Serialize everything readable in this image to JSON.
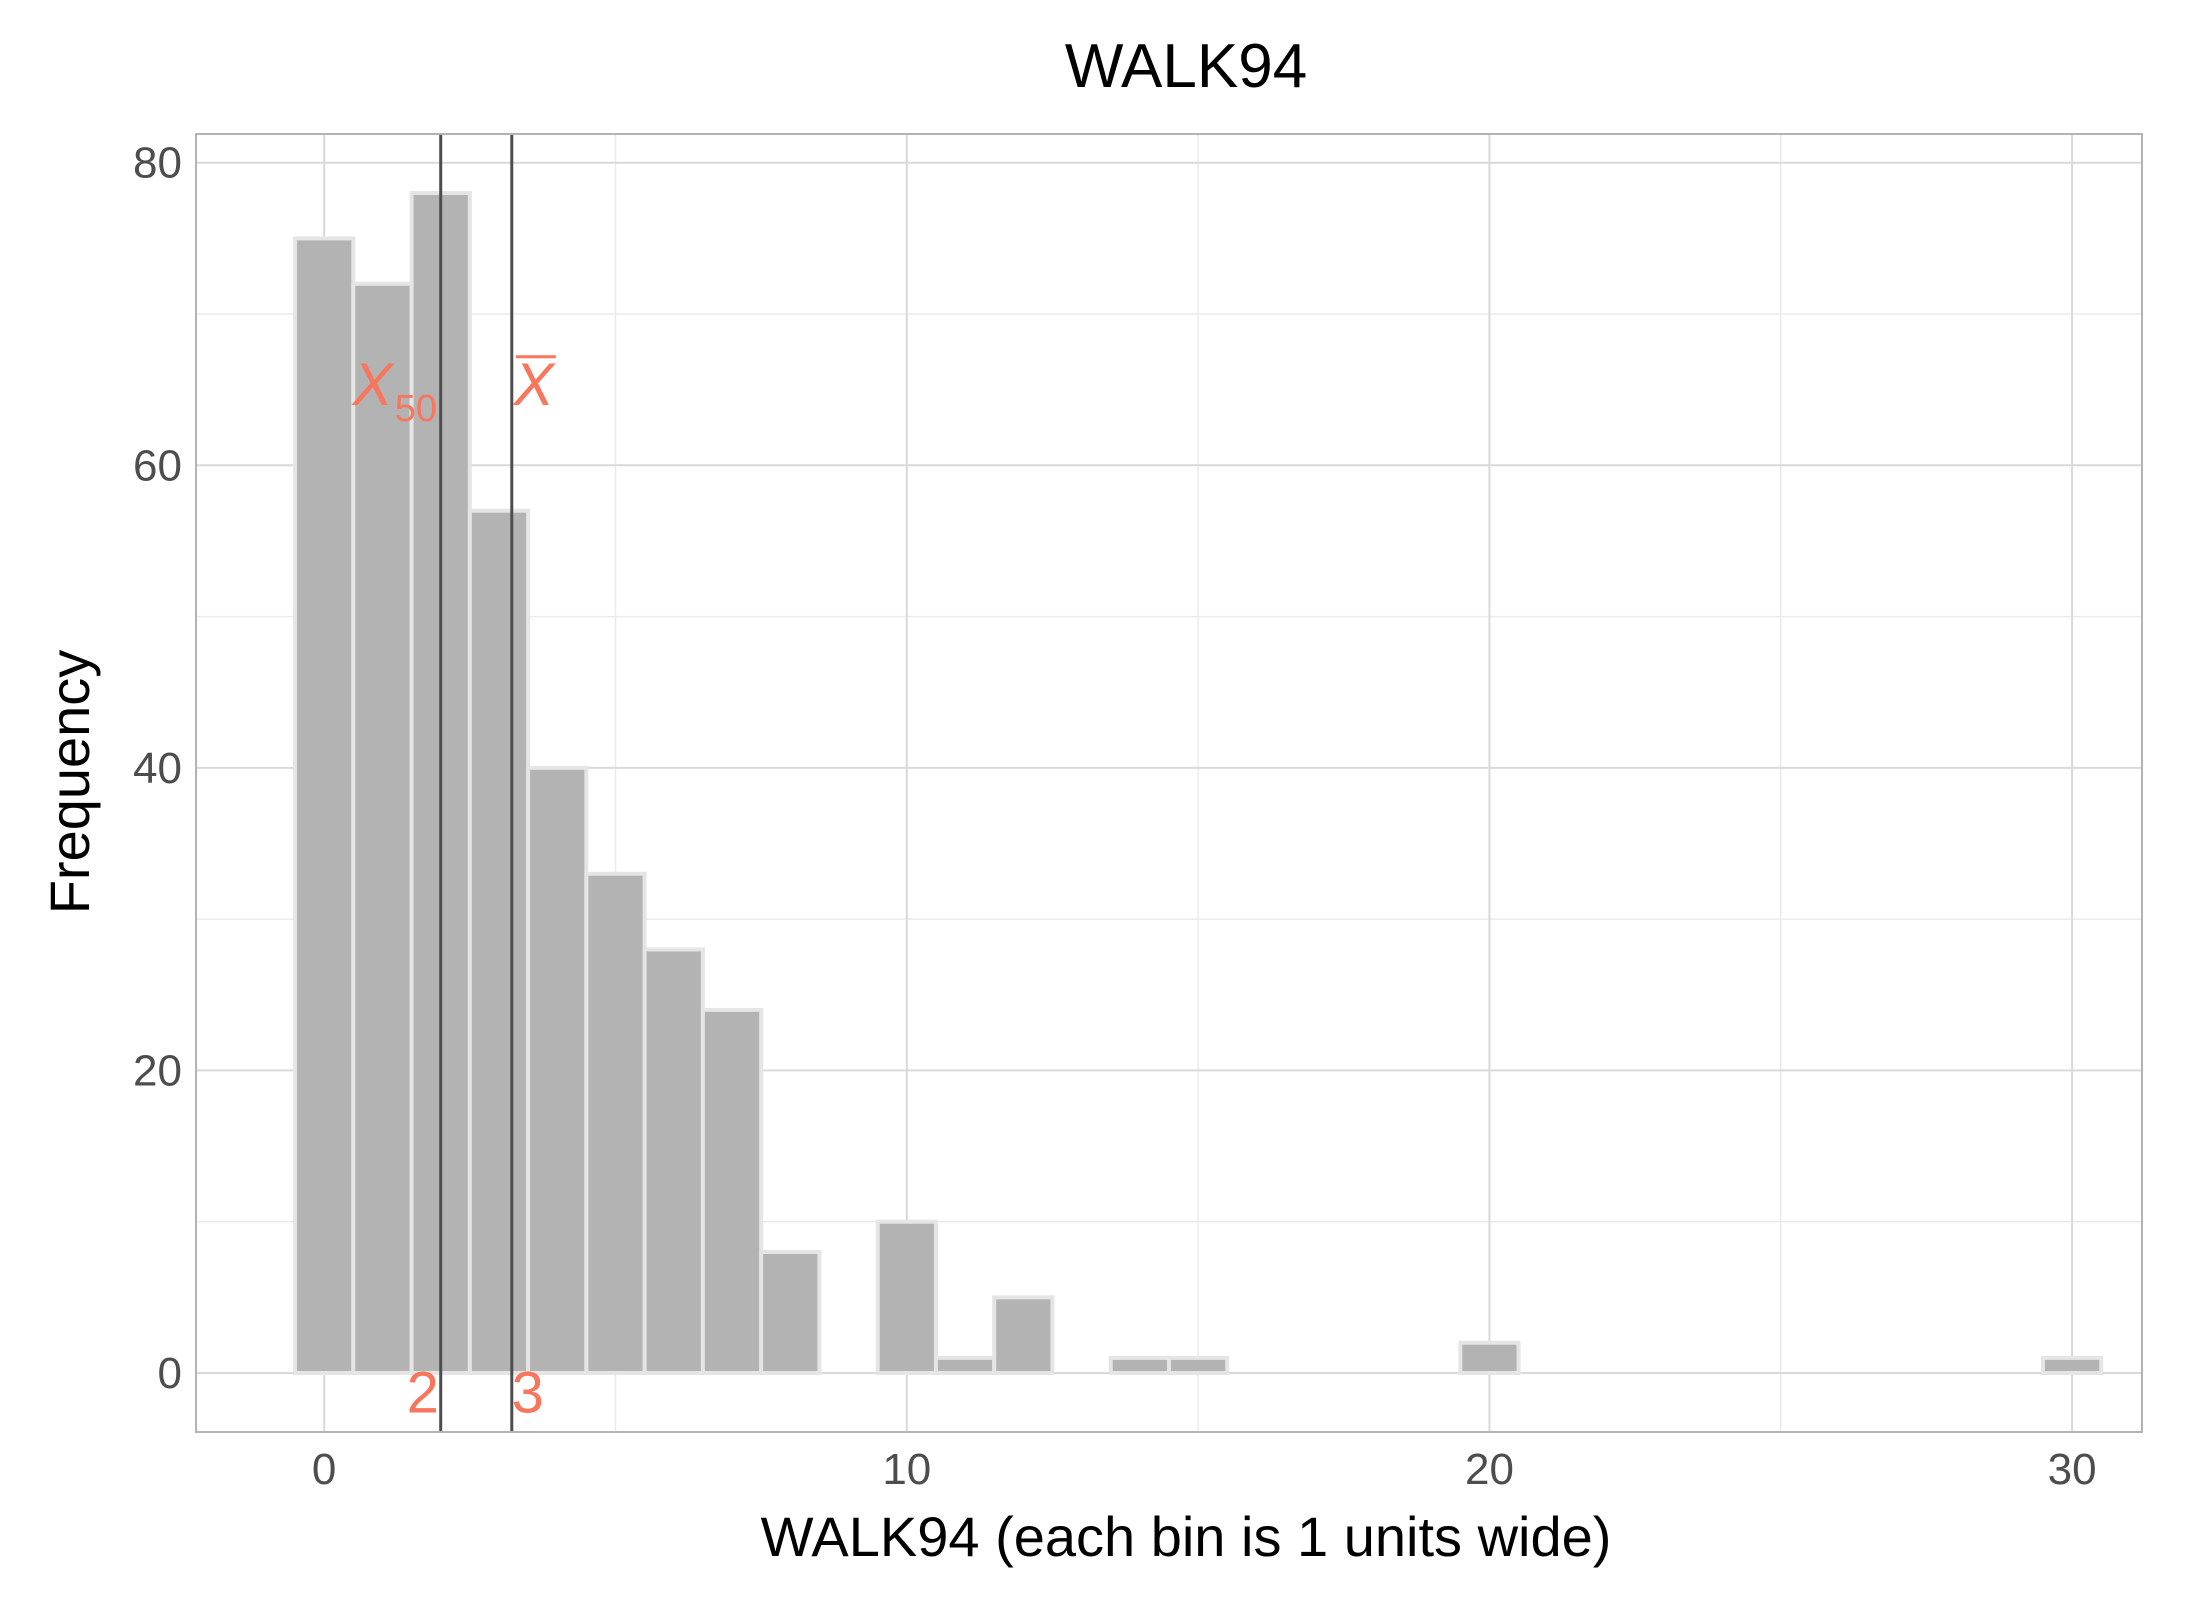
{
  "chart_data": {
    "type": "bar",
    "title": "WALK94",
    "xlabel": "WALK94 (each bin is 1 units wide)",
    "ylabel": "Frequency",
    "bin_width": 1,
    "bins": [
      {
        "x": 0,
        "count": 75
      },
      {
        "x": 1,
        "count": 72
      },
      {
        "x": 2,
        "count": 78
      },
      {
        "x": 3,
        "count": 57
      },
      {
        "x": 4,
        "count": 40
      },
      {
        "x": 5,
        "count": 33
      },
      {
        "x": 6,
        "count": 28
      },
      {
        "x": 7,
        "count": 24
      },
      {
        "x": 8,
        "count": 8
      },
      {
        "x": 9,
        "count": 0
      },
      {
        "x": 10,
        "count": 10
      },
      {
        "x": 11,
        "count": 1
      },
      {
        "x": 12,
        "count": 5
      },
      {
        "x": 13,
        "count": 0
      },
      {
        "x": 14,
        "count": 1
      },
      {
        "x": 15,
        "count": 1
      },
      {
        "x": 16,
        "count": 0
      },
      {
        "x": 17,
        "count": 0
      },
      {
        "x": 18,
        "count": 0
      },
      {
        "x": 19,
        "count": 0
      },
      {
        "x": 20,
        "count": 2
      },
      {
        "x": 21,
        "count": 0
      },
      {
        "x": 22,
        "count": 0
      },
      {
        "x": 23,
        "count": 0
      },
      {
        "x": 24,
        "count": 0
      },
      {
        "x": 25,
        "count": 0
      },
      {
        "x": 26,
        "count": 0
      },
      {
        "x": 27,
        "count": 0
      },
      {
        "x": 28,
        "count": 0
      },
      {
        "x": 29,
        "count": 0
      },
      {
        "x": 30,
        "count": 1
      }
    ],
    "xlim": [
      -2.2,
      31.2
    ],
    "ylim": [
      -3.9,
      81.9
    ],
    "x_ticks": [
      0,
      10,
      20,
      30
    ],
    "x_minor_ticks": [
      5,
      15,
      25
    ],
    "y_ticks": [
      0,
      20,
      40,
      60,
      80
    ],
    "y_minor_ticks": [
      10,
      30,
      50,
      70
    ],
    "grid": true,
    "reference_lines": [
      {
        "label": "X",
        "subscript": "50",
        "value": 2,
        "value_label": "2"
      },
      {
        "label": "X",
        "overline": true,
        "value": 3.22,
        "value_label": "3"
      }
    ],
    "colors": {
      "bar_fill": "#b3b3b3",
      "bar_outline": "#e5e5e5",
      "reference_line": "#4d4d4d",
      "annotation": "#f8765c",
      "grid_major": "#d9d9d9",
      "grid_minor": "#ebebeb",
      "panel_border": "#b3b3b3"
    }
  }
}
